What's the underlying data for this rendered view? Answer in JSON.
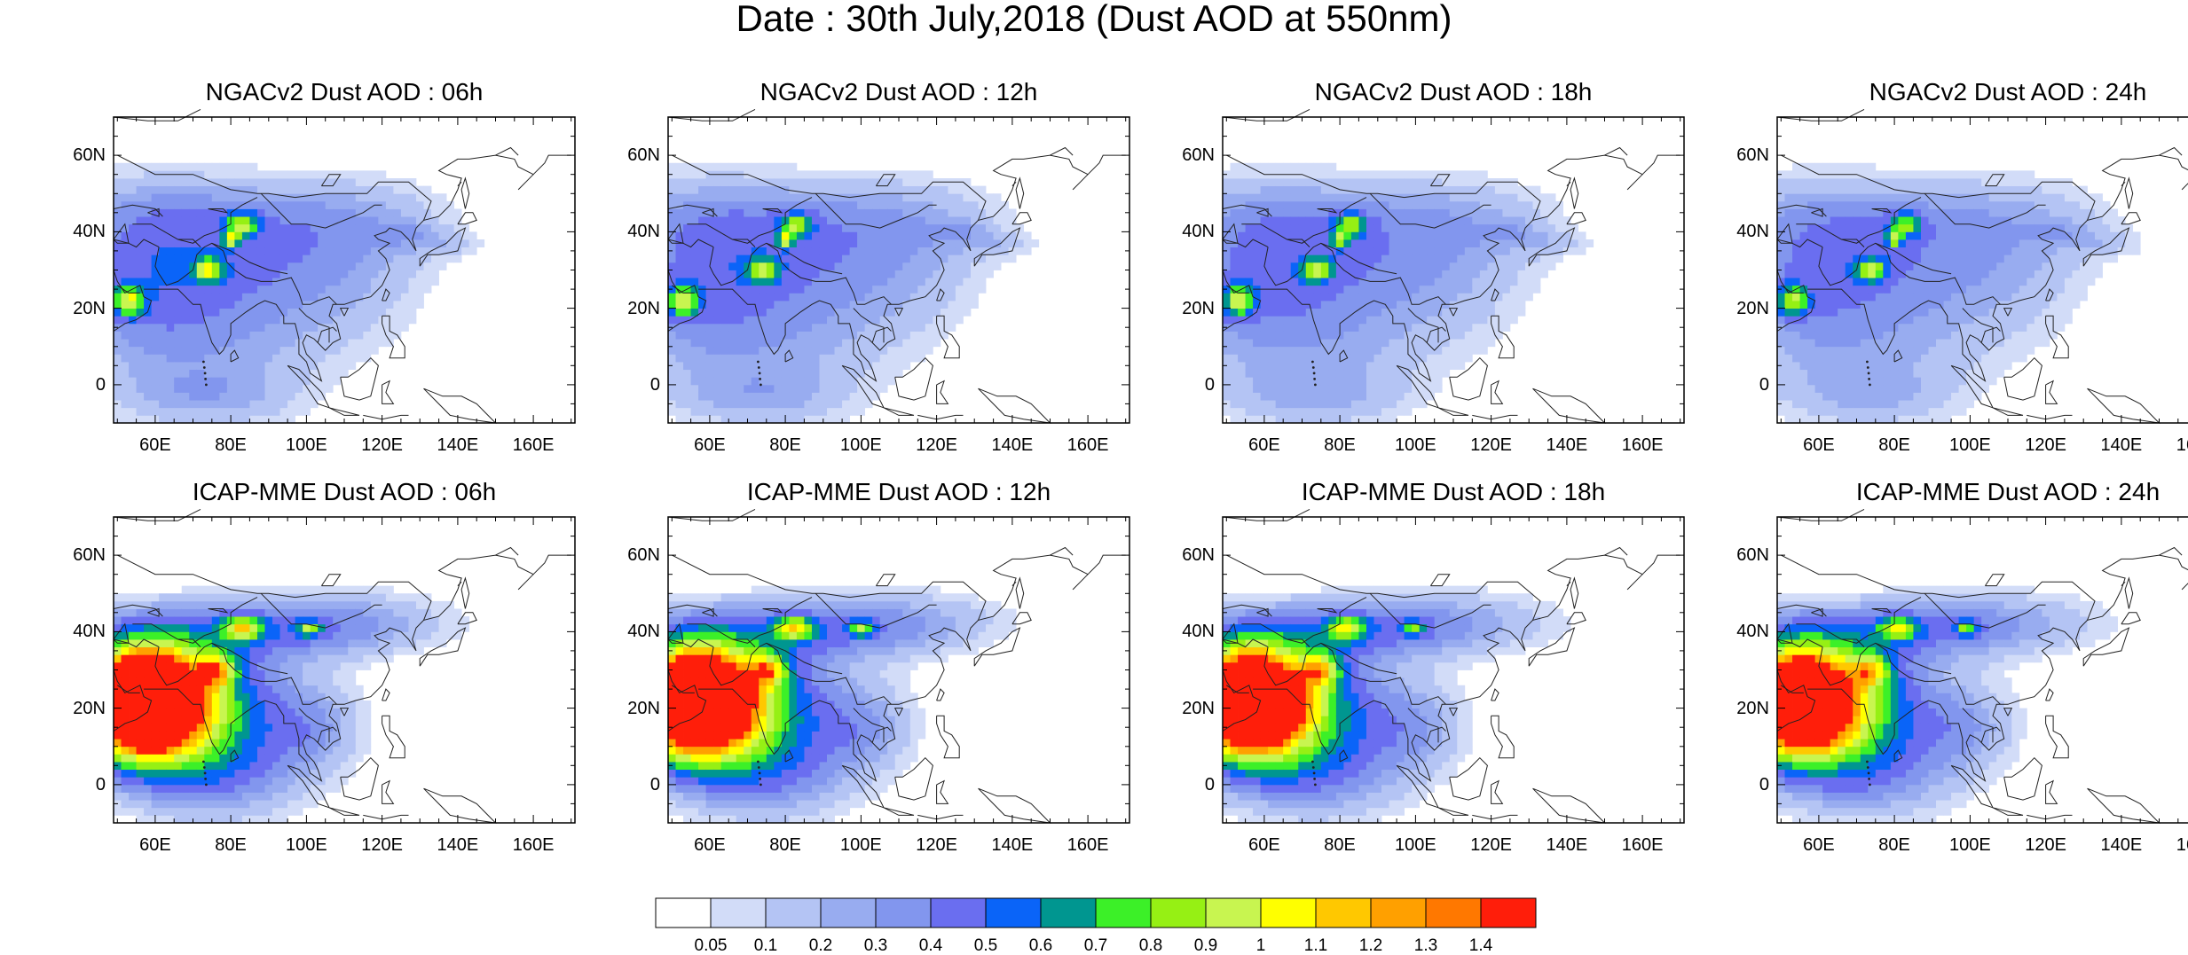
{
  "title": "Date : 30th July,2018 (Dust AOD at 550nm)",
  "lat_ticks": [
    "60N",
    "40N",
    "20N",
    "0"
  ],
  "lon_ticks": [
    "60E",
    "80E",
    "100E",
    "120E",
    "140E",
    "160E"
  ],
  "panels": [
    {
      "title": "NGACv2 Dust AOD : 06h"
    },
    {
      "title": "NGACv2 Dust AOD : 12h"
    },
    {
      "title": "NGACv2 Dust AOD : 18h"
    },
    {
      "title": "NGACv2 Dust AOD : 24h"
    },
    {
      "title": "ICAP-MME Dust AOD : 06h"
    },
    {
      "title": "ICAP-MME Dust AOD : 12h"
    },
    {
      "title": "ICAP-MME Dust AOD : 18h"
    },
    {
      "title": "ICAP-MME Dust AOD : 24h"
    }
  ],
  "map_extent": {
    "lon": [
      49,
      171
    ],
    "lat": [
      -10,
      70
    ]
  },
  "colorbar": {
    "labels": [
      "0.05",
      "0.1",
      "0.2",
      "0.3",
      "0.4",
      "0.5",
      "0.6",
      "0.7",
      "0.8",
      "0.9",
      "1",
      "1.1",
      "1.2",
      "1.3",
      "1.4"
    ],
    "colors": [
      "#ffffff",
      "#d2dcf8",
      "#b4c4f4",
      "#98acf0",
      "#8296ee",
      "#6a6ef0",
      "#0a64f8",
      "#009690",
      "#3cf028",
      "#96f014",
      "#c8f550",
      "#ffff00",
      "#ffc800",
      "#ffa000",
      "#ff7800",
      "#ff1e0a"
    ]
  }
}
